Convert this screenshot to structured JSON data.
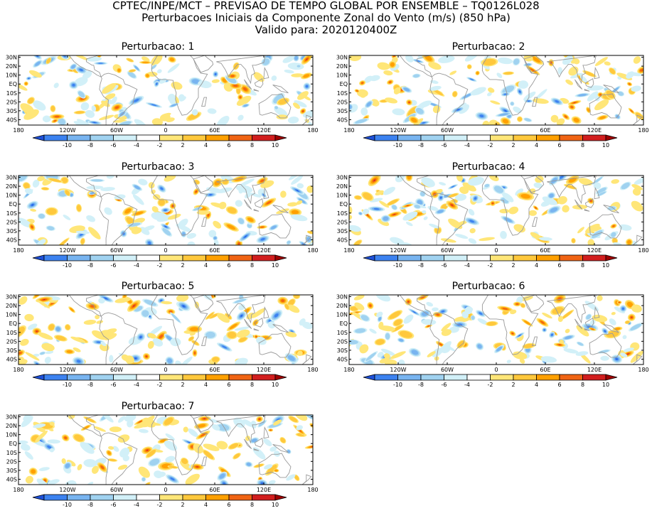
{
  "header": {
    "line1": "CPTEC/INPE/MCT – PREVISAO DE TEMPO GLOBAL POR ENSEMBLE – TQ0126L028",
    "line2": "Perturbacoes Iniciais da Componente Zonal do Vento (m/s) (850 hPa)",
    "line3": "Valido para: 2020120400Z"
  },
  "lat_labels": [
    "30N",
    "20N",
    "10N",
    "EQ",
    "10S",
    "20S",
    "30S",
    "40S"
  ],
  "lon_labels": [
    "180",
    "120W",
    "60W",
    "0",
    "60E",
    "120E",
    "180"
  ],
  "colorbar": {
    "labels": [
      "-10",
      "-8",
      "-6",
      "-4",
      "-2",
      "2",
      "4",
      "6",
      "8",
      "10"
    ],
    "colors": [
      "#1e50d8",
      "#3c82f0",
      "#78b4f0",
      "#a0d2f0",
      "#d2f0f8",
      "#ffffff",
      "#ffe678",
      "#ffc83c",
      "#ffa000",
      "#f06414",
      "#d21e1e",
      "#a00000"
    ]
  },
  "panels": [
    {
      "title": "Perturbacao: 1"
    },
    {
      "title": "Perturbacao: 2"
    },
    {
      "title": "Perturbacao: 3"
    },
    {
      "title": "Perturbacao: 4"
    },
    {
      "title": "Perturbacao: 5"
    },
    {
      "title": "Perturbacao: 6"
    },
    {
      "title": "Perturbacao: 7"
    }
  ]
}
